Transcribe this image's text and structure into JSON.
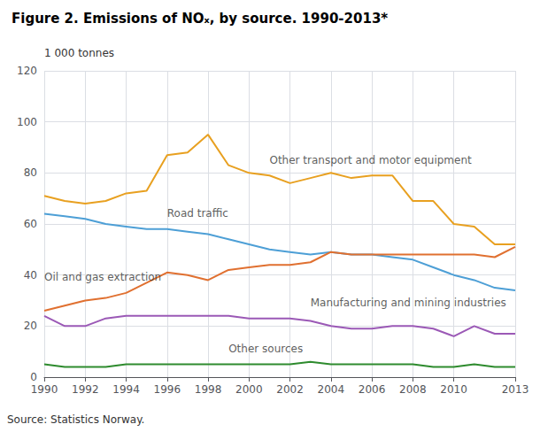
{
  "chart_data": {
    "type": "line",
    "title": "Figure 2. Emissions of NOₓ, by source. 1990-2013*",
    "ylabel": "1 000 tonnes",
    "source": "Source: Statistics Norway.",
    "x": [
      1990,
      1991,
      1992,
      1993,
      1994,
      1995,
      1996,
      1997,
      1998,
      1999,
      2000,
      2001,
      2002,
      2003,
      2004,
      2005,
      2006,
      2007,
      2008,
      2009,
      2010,
      2011,
      2012,
      2013
    ],
    "series": [
      {
        "name": "Other transport and motor equipment",
        "color": "#E8A020",
        "values": [
          71,
          69,
          68,
          69,
          72,
          73,
          87,
          88,
          95,
          83,
          80,
          79,
          76,
          78,
          80,
          78,
          79,
          79,
          69,
          69,
          60,
          59,
          52,
          52
        ]
      },
      {
        "name": "Road traffic",
        "color": "#4D9FD6",
        "values": [
          64,
          63,
          62,
          60,
          59,
          58,
          58,
          57,
          56,
          54,
          52,
          50,
          49,
          48,
          49,
          48,
          48,
          47,
          46,
          43,
          40,
          38,
          35,
          34
        ]
      },
      {
        "name": "Oil and gas extraction",
        "color": "#E07030",
        "values": [
          26,
          28,
          30,
          31,
          33,
          37,
          41,
          40,
          38,
          42,
          43,
          44,
          44,
          45,
          49,
          48,
          48,
          48,
          48,
          48,
          48,
          48,
          47,
          51
        ]
      },
      {
        "name": "Manufacturing and mining industries",
        "color": "#9B59B6",
        "values": [
          24,
          20,
          20,
          23,
          24,
          24,
          24,
          24,
          24,
          24,
          23,
          23,
          23,
          22,
          20,
          19,
          19,
          20,
          20,
          19,
          16,
          20,
          17,
          17
        ]
      },
      {
        "name": "Other sources",
        "color": "#2E8B2E",
        "values": [
          5,
          4,
          4,
          4,
          5,
          5,
          5,
          5,
          5,
          5,
          5,
          5,
          5,
          6,
          5,
          5,
          5,
          5,
          5,
          4,
          4,
          5,
          4,
          4
        ]
      }
    ],
    "annotations": [
      {
        "text": "Other transport and motor equipment",
        "x": 2001,
        "y": 83
      },
      {
        "text": "Road traffic",
        "x": 1996,
        "y": 62
      },
      {
        "text": "Oil and gas extraction",
        "x": 1990,
        "y": 37
      },
      {
        "text": "Manufacturing and mining industries",
        "x": 2003,
        "y": 27
      },
      {
        "text": "Other sources",
        "x": 1999,
        "y": 9
      }
    ],
    "xlim": [
      1990,
      2013
    ],
    "xticks": [
      1990,
      1992,
      1994,
      1996,
      1998,
      2000,
      2002,
      2004,
      2006,
      2008,
      2010,
      2013
    ],
    "ylim": [
      0,
      120
    ],
    "yticks": [
      0,
      20,
      40,
      60,
      80,
      100,
      120
    ],
    "grid": true
  }
}
